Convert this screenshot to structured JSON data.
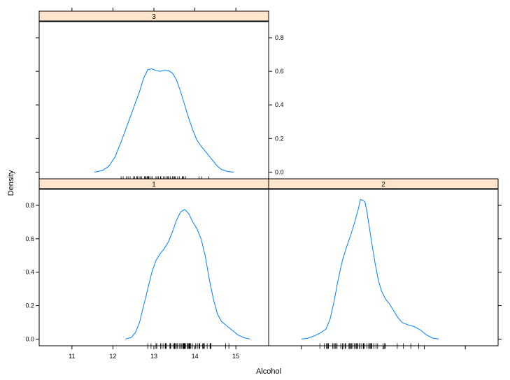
{
  "chart_data": {
    "type": "line",
    "title": "",
    "xlabel": "Alcohol",
    "ylabel": "Density",
    "xlim": [
      10.2,
      15.8
    ],
    "ylim": [
      -0.04,
      0.9
    ],
    "x_ticks": [
      11,
      12,
      13,
      14,
      15
    ],
    "x_tick_labels": [
      "11",
      "12",
      "13",
      "14",
      "15"
    ],
    "y_ticks": [
      0.0,
      0.2,
      0.4,
      0.6,
      0.8
    ],
    "y_tick_labels": [
      "0.0",
      "0.2",
      "0.4",
      "0.6",
      "0.8"
    ],
    "line_color": "#0080ff",
    "strip_color": "#ffe5cc",
    "panels": [
      {
        "strip_label": "3",
        "density": [
          {
            "x": 11.55,
            "y": 0.0
          },
          {
            "x": 11.75,
            "y": 0.01
          },
          {
            "x": 11.9,
            "y": 0.035
          },
          {
            "x": 12.05,
            "y": 0.09
          },
          {
            "x": 12.2,
            "y": 0.18
          },
          {
            "x": 12.35,
            "y": 0.28
          },
          {
            "x": 12.5,
            "y": 0.38
          },
          {
            "x": 12.65,
            "y": 0.48
          },
          {
            "x": 12.75,
            "y": 0.56
          },
          {
            "x": 12.85,
            "y": 0.61
          },
          {
            "x": 12.95,
            "y": 0.615
          },
          {
            "x": 13.05,
            "y": 0.605
          },
          {
            "x": 13.15,
            "y": 0.6
          },
          {
            "x": 13.25,
            "y": 0.605
          },
          {
            "x": 13.35,
            "y": 0.605
          },
          {
            "x": 13.45,
            "y": 0.59
          },
          {
            "x": 13.55,
            "y": 0.55
          },
          {
            "x": 13.65,
            "y": 0.48
          },
          {
            "x": 13.75,
            "y": 0.4
          },
          {
            "x": 13.85,
            "y": 0.32
          },
          {
            "x": 13.95,
            "y": 0.25
          },
          {
            "x": 14.05,
            "y": 0.19
          },
          {
            "x": 14.15,
            "y": 0.155
          },
          {
            "x": 14.25,
            "y": 0.125
          },
          {
            "x": 14.35,
            "y": 0.095
          },
          {
            "x": 14.45,
            "y": 0.065
          },
          {
            "x": 14.55,
            "y": 0.035
          },
          {
            "x": 14.65,
            "y": 0.015
          },
          {
            "x": 14.8,
            "y": 0.003
          },
          {
            "x": 14.95,
            "y": 0.0
          }
        ],
        "rug": [
          12.2,
          12.25,
          12.33,
          12.37,
          12.42,
          12.5,
          12.53,
          12.58,
          12.6,
          12.64,
          12.67,
          12.7,
          12.77,
          12.79,
          12.81,
          12.84,
          12.86,
          12.87,
          12.88,
          12.93,
          12.96,
          13.05,
          13.08,
          13.11,
          13.16,
          13.17,
          13.23,
          13.27,
          13.32,
          13.34,
          13.36,
          13.4,
          13.45,
          13.48,
          13.5,
          13.52,
          13.58,
          13.62,
          13.69,
          13.71,
          13.73,
          13.78,
          14.1,
          14.16,
          14.34
        ]
      },
      {
        "strip_label": "1",
        "density": [
          {
            "x": 12.3,
            "y": 0.0
          },
          {
            "x": 12.45,
            "y": 0.01
          },
          {
            "x": 12.55,
            "y": 0.04
          },
          {
            "x": 12.65,
            "y": 0.1
          },
          {
            "x": 12.75,
            "y": 0.2
          },
          {
            "x": 12.85,
            "y": 0.3
          },
          {
            "x": 12.95,
            "y": 0.4
          },
          {
            "x": 13.05,
            "y": 0.47
          },
          {
            "x": 13.15,
            "y": 0.51
          },
          {
            "x": 13.25,
            "y": 0.54
          },
          {
            "x": 13.35,
            "y": 0.58
          },
          {
            "x": 13.45,
            "y": 0.64
          },
          {
            "x": 13.55,
            "y": 0.71
          },
          {
            "x": 13.65,
            "y": 0.76
          },
          {
            "x": 13.75,
            "y": 0.775
          },
          {
            "x": 13.85,
            "y": 0.75
          },
          {
            "x": 13.95,
            "y": 0.7
          },
          {
            "x": 14.05,
            "y": 0.66
          },
          {
            "x": 14.15,
            "y": 0.6
          },
          {
            "x": 14.25,
            "y": 0.5
          },
          {
            "x": 14.35,
            "y": 0.36
          },
          {
            "x": 14.45,
            "y": 0.24
          },
          {
            "x": 14.55,
            "y": 0.15
          },
          {
            "x": 14.65,
            "y": 0.105
          },
          {
            "x": 14.75,
            "y": 0.085
          },
          {
            "x": 14.85,
            "y": 0.065
          },
          {
            "x": 14.95,
            "y": 0.045
          },
          {
            "x": 15.05,
            "y": 0.025
          },
          {
            "x": 15.2,
            "y": 0.008
          },
          {
            "x": 15.35,
            "y": 0.0
          }
        ],
        "rug": [
          12.85,
          12.93,
          13.05,
          13.07,
          13.16,
          13.2,
          13.24,
          13.28,
          13.29,
          13.3,
          13.39,
          13.4,
          13.41,
          13.48,
          13.5,
          13.51,
          13.52,
          13.56,
          13.58,
          13.63,
          13.64,
          13.68,
          13.71,
          13.72,
          13.73,
          13.74,
          13.75,
          13.76,
          13.77,
          13.82,
          13.83,
          13.84,
          13.86,
          13.87,
          13.88,
          13.9,
          13.94,
          14.02,
          14.06,
          14.1,
          14.12,
          14.19,
          14.21,
          14.22,
          14.23,
          14.3,
          14.37,
          14.38,
          14.39,
          14.75,
          14.83
        ]
      },
      {
        "strip_label": "2",
        "density": [
          {
            "x": 11.0,
            "y": 0.0
          },
          {
            "x": 11.15,
            "y": 0.005
          },
          {
            "x": 11.3,
            "y": 0.018
          },
          {
            "x": 11.45,
            "y": 0.035
          },
          {
            "x": 11.6,
            "y": 0.06
          },
          {
            "x": 11.7,
            "y": 0.12
          },
          {
            "x": 11.8,
            "y": 0.23
          },
          {
            "x": 11.9,
            "y": 0.36
          },
          {
            "x": 12.0,
            "y": 0.47
          },
          {
            "x": 12.1,
            "y": 0.55
          },
          {
            "x": 12.2,
            "y": 0.62
          },
          {
            "x": 12.3,
            "y": 0.7
          },
          {
            "x": 12.38,
            "y": 0.77
          },
          {
            "x": 12.44,
            "y": 0.835
          },
          {
            "x": 12.5,
            "y": 0.83
          },
          {
            "x": 12.55,
            "y": 0.82
          },
          {
            "x": 12.6,
            "y": 0.76
          },
          {
            "x": 12.65,
            "y": 0.68
          },
          {
            "x": 12.72,
            "y": 0.57
          },
          {
            "x": 12.8,
            "y": 0.45
          },
          {
            "x": 12.88,
            "y": 0.35
          },
          {
            "x": 12.95,
            "y": 0.29
          },
          {
            "x": 13.05,
            "y": 0.24
          },
          {
            "x": 13.15,
            "y": 0.21
          },
          {
            "x": 13.25,
            "y": 0.17
          },
          {
            "x": 13.35,
            "y": 0.13
          },
          {
            "x": 13.45,
            "y": 0.1
          },
          {
            "x": 13.6,
            "y": 0.085
          },
          {
            "x": 13.75,
            "y": 0.075
          },
          {
            "x": 13.9,
            "y": 0.055
          },
          {
            "x": 14.05,
            "y": 0.025
          },
          {
            "x": 14.2,
            "y": 0.006
          },
          {
            "x": 14.35,
            "y": 0.0
          }
        ],
        "rug": [
          11.45,
          11.56,
          11.61,
          11.64,
          11.65,
          11.66,
          11.76,
          11.79,
          11.82,
          11.84,
          11.87,
          11.96,
          12.0,
          12.04,
          12.07,
          12.08,
          12.16,
          12.17,
          12.2,
          12.21,
          12.22,
          12.25,
          12.29,
          12.33,
          12.34,
          12.36,
          12.37,
          12.42,
          12.43,
          12.47,
          12.51,
          12.52,
          12.53,
          12.6,
          12.64,
          12.67,
          12.69,
          12.7,
          12.72,
          12.77,
          12.82,
          12.86,
          12.99,
          13.03,
          13.05,
          13.34,
          13.49,
          13.67,
          13.86
        ]
      }
    ]
  }
}
